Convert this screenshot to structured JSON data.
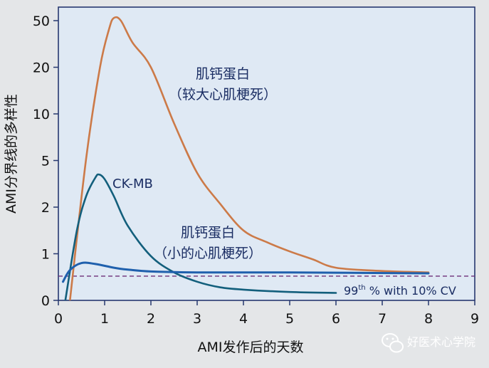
{
  "chart_data": {
    "type": "line",
    "title": "",
    "xlabel": "AMI发作后的天数",
    "ylabel": "AMI分界线的多样性",
    "x_ticks": [
      0,
      1,
      2,
      3,
      4,
      5,
      6,
      7,
      8,
      9
    ],
    "y_tick_labels": [
      "0",
      "1",
      "2",
      "5",
      "10",
      "20",
      "50"
    ],
    "xlim": [
      0,
      9
    ],
    "grid": false,
    "colors": {
      "troponin_large": "#cc7a48",
      "ckmb": "#135f7c",
      "troponin_small": "#1f60ad",
      "threshold": "#6e2f78",
      "plot_bg": "#dfe9f4",
      "frame": "#27386f"
    },
    "series": [
      {
        "key": "troponin_large",
        "label_line1": "肌钙蛋白",
        "label_line2": "（较大心肌梗死）",
        "points": [
          [
            0.25,
            0
          ],
          [
            0.6,
            5.2
          ],
          [
            0.9,
            20
          ],
          [
            1.1,
            45
          ],
          [
            1.2,
            52
          ],
          [
            1.35,
            50
          ],
          [
            1.6,
            36
          ],
          [
            2.0,
            20
          ],
          [
            2.5,
            9
          ],
          [
            3.0,
            4.2
          ],
          [
            3.5,
            2.2
          ],
          [
            4.0,
            1.5
          ],
          [
            4.5,
            1.25
          ],
          [
            5.0,
            1.05
          ],
          [
            5.5,
            0.88
          ],
          [
            6.0,
            0.7
          ],
          [
            7.0,
            0.63
          ],
          [
            8.0,
            0.6
          ]
        ]
      },
      {
        "key": "ckmb",
        "label": "CK-MB",
        "points": [
          [
            0.15,
            0
          ],
          [
            0.4,
            1.5
          ],
          [
            0.6,
            2.7
          ],
          [
            0.8,
            3.9
          ],
          [
            0.88,
            4.1
          ],
          [
            1.0,
            3.8
          ],
          [
            1.2,
            2.7
          ],
          [
            1.5,
            1.6
          ],
          [
            2.0,
            0.95
          ],
          [
            2.5,
            0.6
          ],
          [
            3.0,
            0.4
          ],
          [
            3.5,
            0.28
          ],
          [
            4.0,
            0.23
          ],
          [
            5.0,
            0.18
          ],
          [
            6.0,
            0.16
          ]
        ]
      },
      {
        "key": "troponin_small",
        "label_line1": "肌钙蛋白",
        "label_line2": "（小的心肌梗死）",
        "points": [
          [
            0.1,
            0.4
          ],
          [
            0.25,
            0.65
          ],
          [
            0.5,
            0.8
          ],
          [
            0.8,
            0.78
          ],
          [
            1.2,
            0.7
          ],
          [
            1.5,
            0.66
          ],
          [
            2.0,
            0.62
          ],
          [
            3.0,
            0.6
          ],
          [
            5.0,
            0.6
          ],
          [
            8.0,
            0.58
          ]
        ]
      }
    ],
    "threshold": {
      "value": 0.52,
      "label_prefix": "99",
      "label_sup": "th",
      "label_rest": " % with 10% CV"
    }
  },
  "watermark": {
    "text": "好医术心学院"
  }
}
